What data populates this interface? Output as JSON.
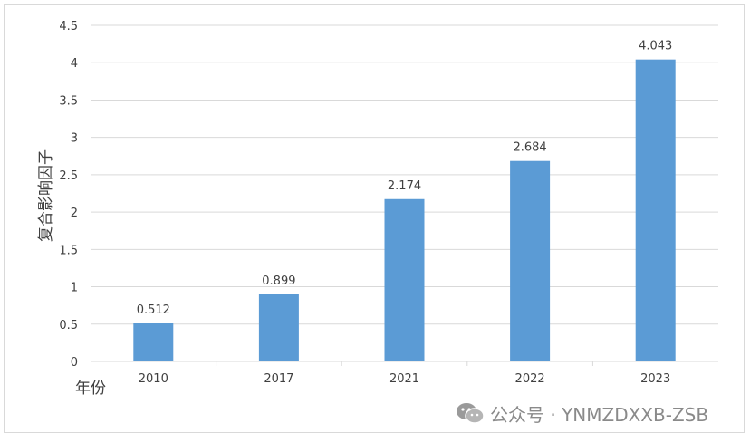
{
  "chart_data": {
    "type": "bar",
    "categories": [
      "2010",
      "2017",
      "2021",
      "2022",
      "2023"
    ],
    "values": [
      0.512,
      0.899,
      2.174,
      2.684,
      4.043
    ],
    "data_labels": [
      "0.512",
      "0.899",
      "2.174",
      "2.684",
      "4.043"
    ],
    "title": "",
    "xlabel": "年份",
    "ylabel": "复合影响因子",
    "ylim": [
      0,
      4.5
    ],
    "yticks": [
      "0",
      "0.5",
      "1",
      "1.5",
      "2",
      "2.5",
      "3",
      "3.5",
      "4",
      "4.5"
    ],
    "grid": true,
    "bar_color": "#5b9bd5"
  },
  "watermark": {
    "text": "公众号 · YNMZDXXB-ZSB",
    "icon": "wechat-icon"
  }
}
